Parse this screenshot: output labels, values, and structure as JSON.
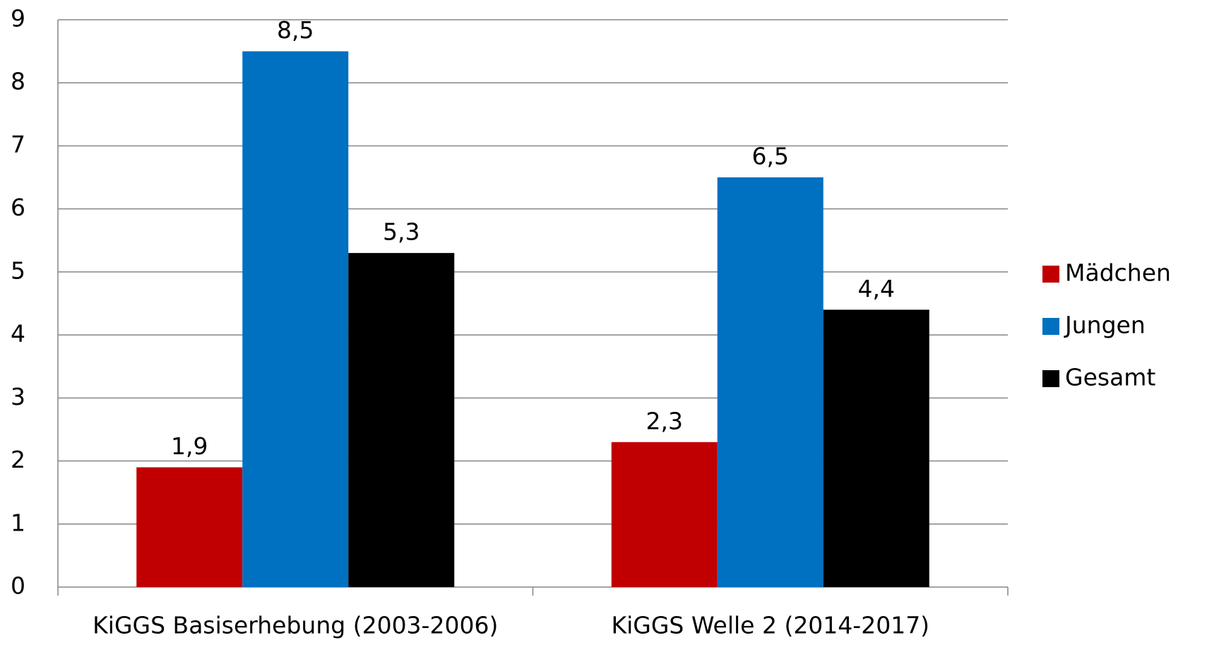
{
  "chart_data": {
    "type": "bar",
    "categories": [
      "KiGGS Basiserhebung (2003-2006)",
      "KiGGS Welle 2 (2014-2017)"
    ],
    "series": [
      {
        "name": "Mädchen",
        "color": "#c00000",
        "values": [
          1.9,
          2.3
        ],
        "value_labels": [
          "1,9",
          "2,3"
        ]
      },
      {
        "name": "Jungen",
        "color": "#0070c0",
        "values": [
          8.5,
          6.5
        ],
        "value_labels": [
          "8,5",
          "6,5"
        ]
      },
      {
        "name": "Gesamt",
        "color": "#000000",
        "values": [
          5.3,
          4.4
        ],
        "value_labels": [
          "5,3",
          "4,4"
        ]
      }
    ],
    "ylim": [
      0,
      9
    ],
    "yticks": [
      0,
      1,
      2,
      3,
      4,
      5,
      6,
      7,
      8,
      9
    ],
    "grid": true,
    "legend": "right"
  }
}
